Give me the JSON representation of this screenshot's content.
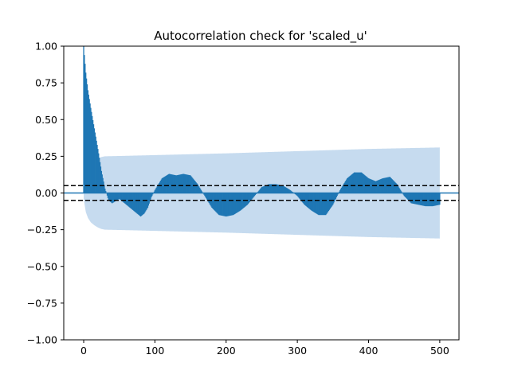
{
  "chart_data": {
    "type": "area",
    "title": "Autocorrelation check for 'scaled_u'",
    "xlabel": "",
    "ylabel": "",
    "xlim": [
      -28,
      527
    ],
    "ylim": [
      -1.0,
      1.0
    ],
    "xticks": [
      0,
      100,
      200,
      300,
      400,
      500
    ],
    "xtick_labels": [
      "0",
      "100",
      "200",
      "300",
      "400",
      "500"
    ],
    "yticks": [
      -1.0,
      -0.75,
      -0.5,
      -0.25,
      0.0,
      0.25,
      0.5,
      0.75,
      1.0
    ],
    "ytick_labels": [
      "−1.00",
      "−0.75",
      "−0.50",
      "−0.25",
      "0.00",
      "0.25",
      "0.50",
      "0.75",
      "1.00"
    ],
    "grid": false,
    "zero_line": 0.0,
    "dashed_thresholds": [
      0.05,
      -0.05
    ],
    "n_lags": 500,
    "acf_keypoints": {
      "lag": [
        0,
        3,
        6,
        10,
        15,
        20,
        25,
        30,
        35,
        40,
        50,
        60,
        70,
        80,
        85,
        90,
        95,
        100,
        110,
        120,
        130,
        140,
        150,
        160,
        170,
        180,
        190,
        200,
        210,
        220,
        230,
        240,
        250,
        260,
        270,
        280,
        290,
        300,
        310,
        320,
        330,
        340,
        350,
        360,
        370,
        380,
        390,
        400,
        410,
        420,
        430,
        440,
        450,
        460,
        470,
        480,
        490,
        500
      ],
      "acf": [
        1.0,
        0.82,
        0.7,
        0.58,
        0.44,
        0.3,
        0.15,
        0.03,
        -0.05,
        -0.07,
        -0.04,
        -0.08,
        -0.12,
        -0.16,
        -0.14,
        -0.1,
        -0.03,
        0.02,
        0.1,
        0.13,
        0.12,
        0.13,
        0.12,
        0.06,
        -0.02,
        -0.1,
        -0.15,
        -0.16,
        -0.15,
        -0.12,
        -0.08,
        -0.02,
        0.04,
        0.06,
        0.06,
        0.05,
        0.02,
        -0.02,
        -0.08,
        -0.12,
        -0.15,
        -0.15,
        -0.08,
        0.02,
        0.1,
        0.14,
        0.14,
        0.1,
        0.08,
        0.1,
        0.11,
        0.06,
        -0.02,
        -0.07,
        -0.08,
        -0.09,
        -0.09,
        -0.08
      ]
    },
    "confidence_band_keypoints": {
      "lag": [
        0,
        3,
        6,
        10,
        15,
        20,
        25,
        30,
        50,
        100,
        200,
        300,
        400,
        500
      ],
      "halfwidth": [
        0.04,
        0.13,
        0.17,
        0.2,
        0.22,
        0.235,
        0.245,
        0.25,
        0.252,
        0.258,
        0.27,
        0.285,
        0.3,
        0.31
      ]
    },
    "colors": {
      "acf": "#1f77b4",
      "band": "#c6dbef",
      "thresholds": "#000000"
    }
  }
}
